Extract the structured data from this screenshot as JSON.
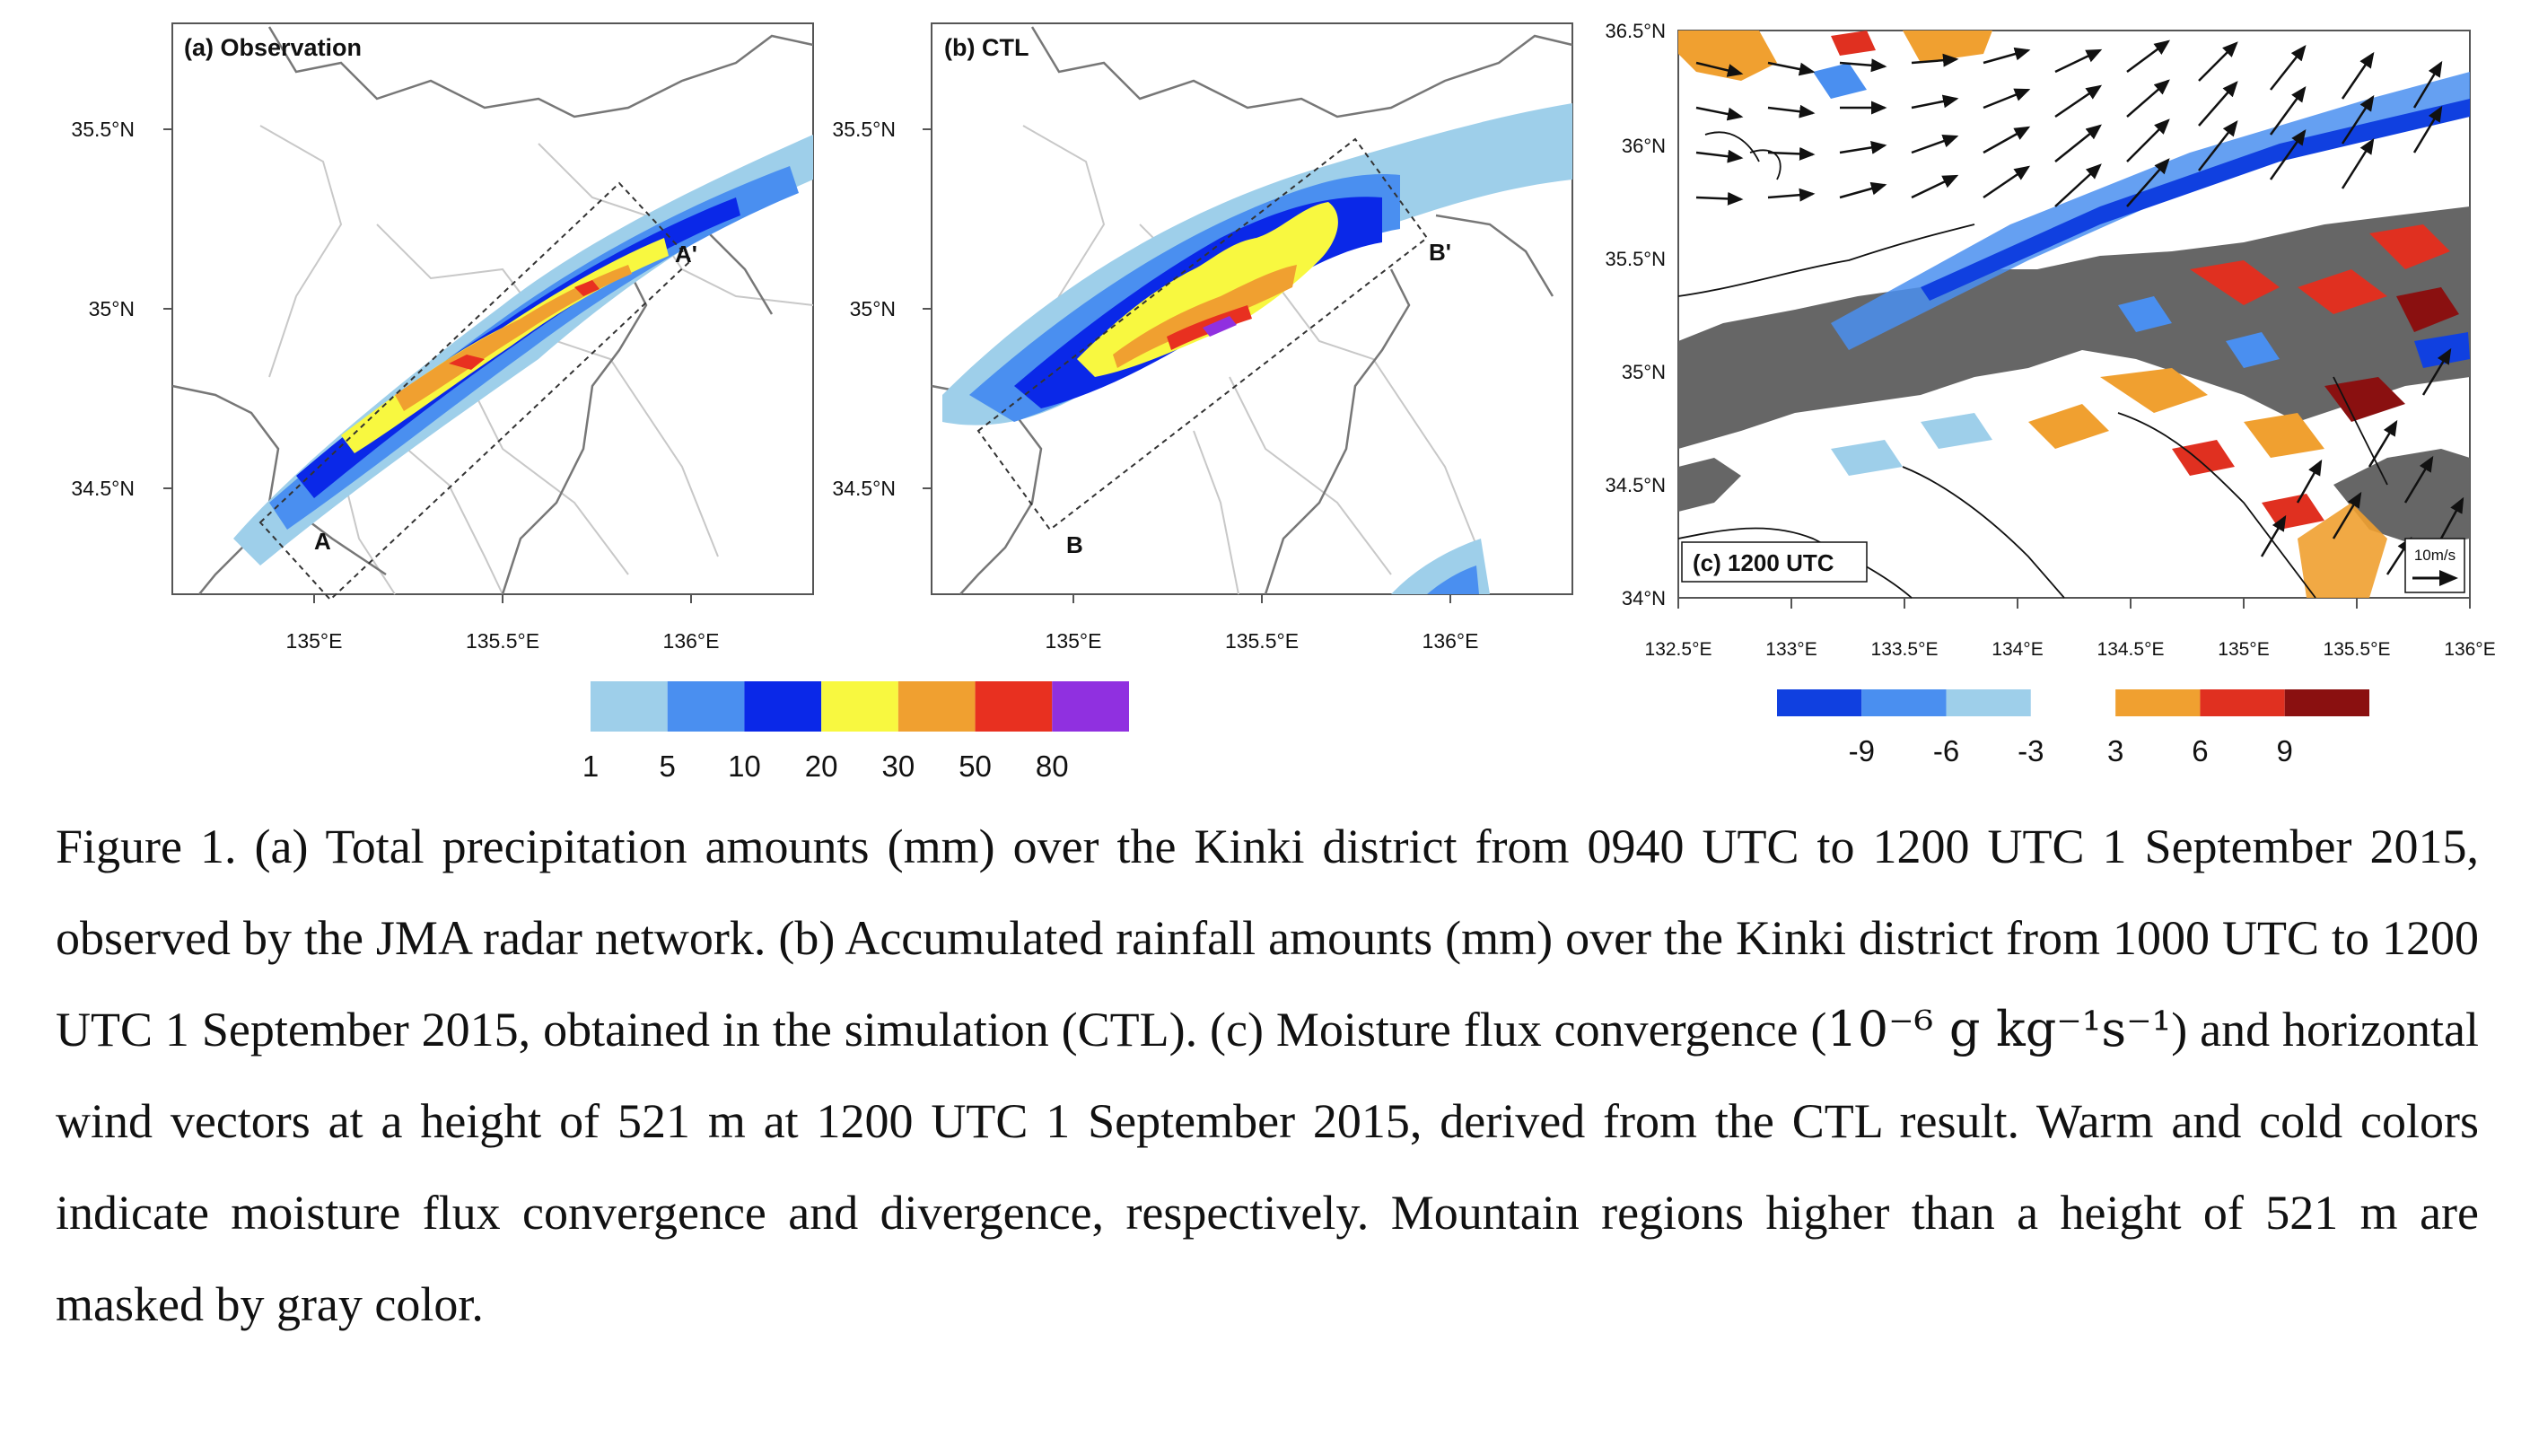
{
  "panels": [
    {
      "label": "(a) Observation",
      "y_ticks": [
        "35.5°N",
        "35°N",
        "34.5°N"
      ],
      "x_ticks": [
        "135°E",
        "135.5°E",
        "136°E"
      ],
      "markers": [
        "A",
        "A'"
      ]
    },
    {
      "label": "(b) CTL",
      "y_ticks": [
        "35.5°N",
        "35°N",
        "34.5°N"
      ],
      "x_ticks": [
        "135°E",
        "135.5°E",
        "136°E"
      ],
      "markers": [
        "B",
        "B'"
      ]
    },
    {
      "label": "(c) 1200 UTC",
      "y_ticks": [
        "36.5°N",
        "36°N",
        "35.5°N",
        "35°N",
        "34.5°N",
        "34°N"
      ],
      "x_ticks": [
        "132.5°E",
        "133°E",
        "133.5°E",
        "134°E",
        "134.5°E",
        "135°E",
        "135.5°E",
        "136°E"
      ],
      "ref_vector": "10m/s"
    }
  ],
  "colorbar_precip": {
    "labels": [
      "1",
      "5",
      "10",
      "20",
      "30",
      "50",
      "80"
    ],
    "colors": [
      "#9ecfea",
      "#4a8ff0",
      "#0a28e8",
      "#f8f840",
      "#f0a030",
      "#e83020",
      "#9030e0"
    ]
  },
  "colorbar_flux": {
    "labels": [
      "-9",
      "-6",
      "-3",
      "3",
      "6",
      "9"
    ],
    "colors": [
      "#1040e0",
      "#4a8ff0",
      "#9ecfea",
      "#ffffff",
      "#f0a030",
      "#e03020",
      "#8a1010"
    ]
  },
  "caption": {
    "p1": "Figure 1. (a) Total precipitation amounts (mm) over the Kinki district from 0940 UTC to 1200 UTC 1 September 2015, observed by the JMA radar network. (b) Accumulated rainfall amounts (mm) over the Kinki district from 1000 UTC to 1200 UTC 1 September 2015, obtained in the simulation (CTL). (c) Moisture flux convergence (",
    "unit": "10⁻⁶ g kg⁻¹s⁻¹",
    "p2": ") and horizontal wind vectors at a height of 521 m at 1200 UTC 1 September 2015, derived from the CTL result. Warm and cold colors indicate moisture flux convergence and divergence, respectively. Mountain regions higher than a height of 521 m are masked by gray color."
  }
}
